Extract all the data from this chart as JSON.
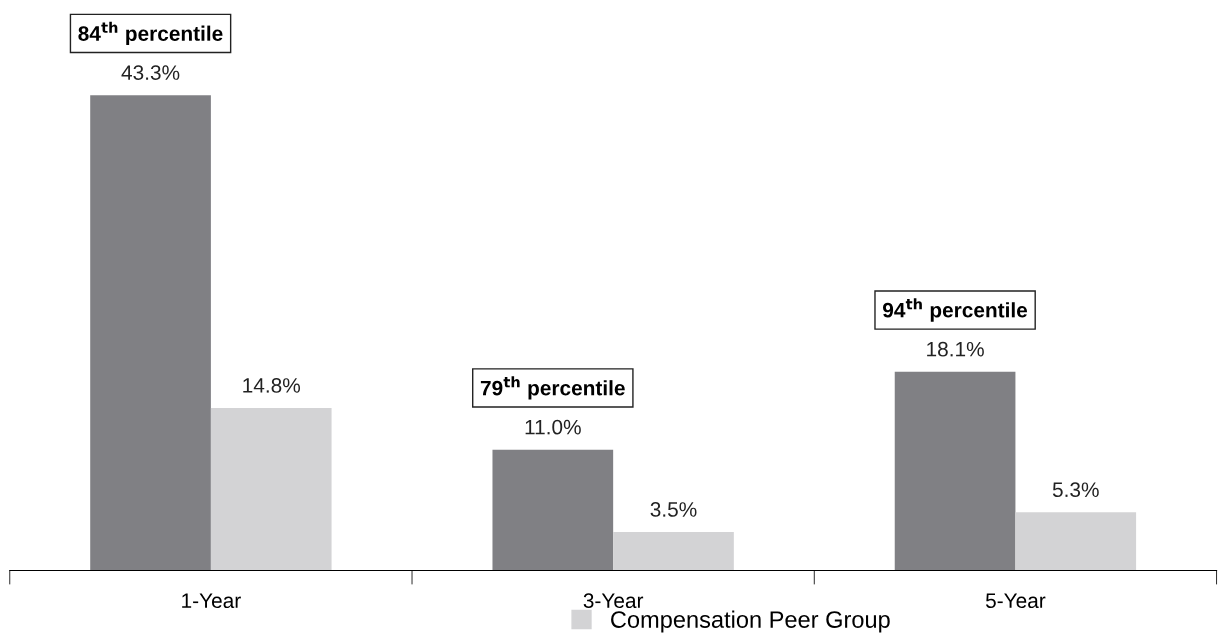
{
  "chart_data": {
    "type": "bar",
    "categories": [
      "1-Year",
      "3-Year",
      "5-Year"
    ],
    "series": [
      {
        "color": "#808084",
        "values": [
          43.3,
          11.0,
          18.1
        ],
        "value_labels": [
          "43.3%",
          "11.0%",
          "18.1%"
        ]
      },
      {
        "name": "Compensation Peer Group",
        "color": "#d3d3d5",
        "values": [
          14.8,
          3.5,
          5.3
        ],
        "value_labels": [
          "14.8%",
          "3.5%",
          "5.3%"
        ]
      }
    ],
    "grid": false,
    "legend": "bottom",
    "annotations": [
      "84$^{th}$ percentile",
      "79$^{th}$ percentile",
      "94$^{th}$ percentile"
    ]
  }
}
